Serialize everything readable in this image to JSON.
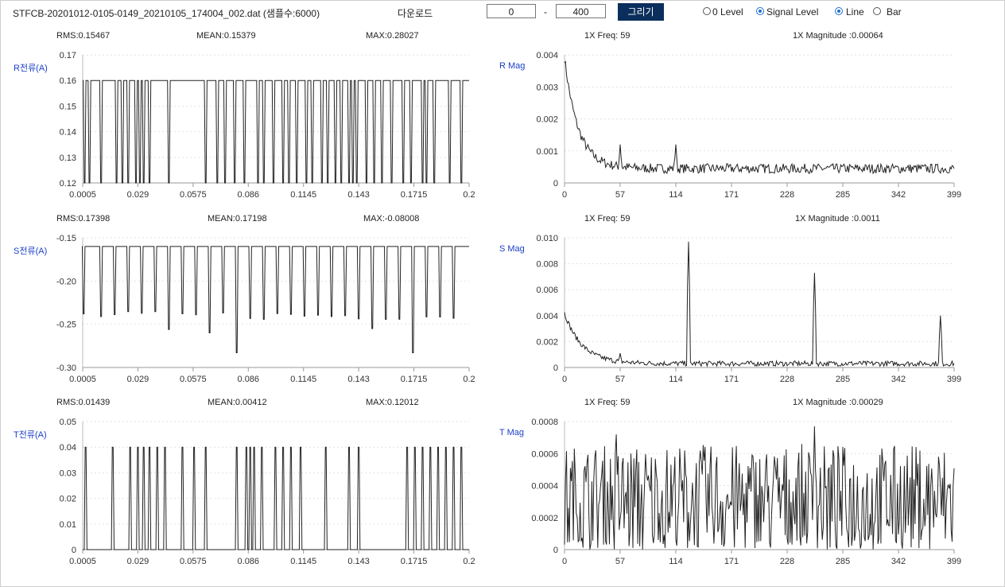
{
  "toolbar": {
    "filename": "STFCB-20201012-0105-0149_20210105_174004_002.dat (샘플수:6000)",
    "download_label": "다운로드",
    "range_from": "0",
    "range_sep": "-",
    "range_to": "400",
    "draw_button": "그리기",
    "level_options": [
      {
        "label": "0 Level",
        "selected": false
      },
      {
        "label": "Signal Level",
        "selected": true
      }
    ],
    "style_options": [
      {
        "label": "Line",
        "selected": true
      },
      {
        "label": "Bar",
        "selected": false
      }
    ]
  },
  "colors": {
    "label_blue": "#1a3fc8",
    "button_bg": "#0b2f5c",
    "radio_on": "#1f6fd1",
    "trace": "#222222",
    "grid": "#e2e2e2"
  },
  "chart_data": [
    {
      "id": "r-current",
      "type": "line",
      "ylabel": "R전류(A)",
      "stats": [
        "RMS:0.15467",
        "MEAN:0.15379",
        "MAX:0.28027"
      ],
      "x_ticks": [
        "0.0005",
        "0.029",
        "0.0575",
        "0.086",
        "0.1145",
        "0.143",
        "0.1715",
        "0.2"
      ],
      "y_ticks": [
        "0.17",
        "0.16",
        "0.15",
        "0.14",
        "0.13",
        "0.12"
      ],
      "xlim": [
        0.0005,
        0.2
      ],
      "ylim": [
        0.12,
        0.17
      ],
      "signal": "square",
      "high": 0.16,
      "low": 0.12,
      "dip_depth": 0,
      "drops": [
        0.0015,
        0.004,
        0.01,
        0.018,
        0.021,
        0.024,
        0.028,
        0.03,
        0.032,
        0.035,
        0.045,
        0.064,
        0.07,
        0.074,
        0.079,
        0.084,
        0.091,
        0.094,
        0.099,
        0.104,
        0.107,
        0.111,
        0.116,
        0.119,
        0.124,
        0.127,
        0.131,
        0.134,
        0.138,
        0.14,
        0.142,
        0.147,
        0.151,
        0.155,
        0.16,
        0.166,
        0.17,
        0.176,
        0.178,
        0.182,
        0.19,
        0.196
      ]
    },
    {
      "id": "r-mag",
      "type": "line",
      "ylabel": "R Mag",
      "stats": [
        "1X Freq: 59",
        "1X Magnitude :0.00064"
      ],
      "x_ticks": [
        "0",
        "57",
        "114",
        "171",
        "228",
        "285",
        "342",
        "399"
      ],
      "y_ticks": [
        "0.004",
        "0.003",
        "0.002",
        "0.001",
        "0"
      ],
      "xlim": [
        0,
        399
      ],
      "ylim": [
        0,
        0.004
      ],
      "signal": "spectrum",
      "decay": {
        "start": 0.0039,
        "tau": 14,
        "floor": 0.00045
      },
      "noise": 0.0003,
      "peaks": [
        [
          57,
          0.0012
        ],
        [
          114,
          0.0012
        ]
      ]
    },
    {
      "id": "s-current",
      "type": "line",
      "ylabel": "S전류(A)",
      "stats": [
        "RMS:0.17398",
        "MEAN:0.17198",
        "MAX:-0.08008"
      ],
      "x_ticks": [
        "0.0005",
        "0.029",
        "0.0575",
        "0.086",
        "0.1145",
        "0.143",
        "0.1715",
        "0.2"
      ],
      "y_ticks": [
        "-0.15",
        "-0.20",
        "-0.25",
        "-0.30"
      ],
      "xlim": [
        0.0005,
        0.2
      ],
      "ylim": [
        -0.3,
        -0.15
      ],
      "signal": "dips",
      "high": -0.16,
      "low": -0.24,
      "dip_depth": 0,
      "drops": [
        0.001,
        0.01,
        0.017,
        0.024,
        0.031,
        0.038,
        0.045,
        0.052,
        0.059,
        0.066,
        0.073,
        0.08,
        0.087,
        0.094,
        0.101,
        0.108,
        0.115,
        0.122,
        0.129,
        0.136,
        0.143,
        0.15,
        0.157,
        0.164,
        0.171,
        0.178,
        0.185,
        0.192
      ],
      "deep": [
        [
          0.078,
          -0.283
        ],
        [
          0.046,
          -0.256
        ],
        [
          0.15,
          -0.255
        ],
        [
          0.172,
          -0.283
        ],
        [
          0.067,
          -0.26
        ]
      ]
    },
    {
      "id": "s-mag",
      "type": "line",
      "ylabel": "S Mag",
      "stats": [
        "1X Freq: 59",
        "1X Magnitude :0.0011"
      ],
      "x_ticks": [
        "0",
        "57",
        "114",
        "171",
        "228",
        "285",
        "342",
        "399"
      ],
      "y_ticks": [
        "0.010",
        "0.008",
        "0.006",
        "0.004",
        "0.002",
        "0"
      ],
      "xlim": [
        0,
        399
      ],
      "ylim": [
        0,
        0.01
      ],
      "signal": "spectrum",
      "decay": {
        "start": 0.0042,
        "tau": 18,
        "floor": 0.0003
      },
      "noise": 0.0004,
      "peaks": [
        [
          127,
          0.0097
        ],
        [
          256,
          0.0073
        ],
        [
          385,
          0.004
        ],
        [
          57,
          0.0011
        ]
      ]
    },
    {
      "id": "t-current",
      "type": "line",
      "ylabel": "T전류(A)",
      "stats": [
        "RMS:0.01439",
        "MEAN:0.00412",
        "MAX:0.12012"
      ],
      "x_ticks": [
        "0.0005",
        "0.029",
        "0.0575",
        "0.086",
        "0.1145",
        "0.143",
        "0.1715",
        "0.2"
      ],
      "y_ticks": [
        "0.05",
        "0.04",
        "0.03",
        "0.02",
        "0.01",
        "0"
      ],
      "xlim": [
        0.0005,
        0.2
      ],
      "ylim": [
        0,
        0.05
      ],
      "signal": "pulses",
      "high": 0.04,
      "low": 0,
      "drops": [
        0.002,
        0.016,
        0.025,
        0.029,
        0.032,
        0.035,
        0.039,
        0.043,
        0.052,
        0.058,
        0.064,
        0.08,
        0.085,
        0.087,
        0.089,
        0.093,
        0.1,
        0.104,
        0.108,
        0.113,
        0.126,
        0.138,
        0.143,
        0.168,
        0.172,
        0.176,
        0.18,
        0.184,
        0.188,
        0.192,
        0.196
      ]
    },
    {
      "id": "t-mag",
      "type": "line",
      "ylabel": "T Mag",
      "stats": [
        "1X Freq: 59",
        "1X Magnitude :0.00029"
      ],
      "x_ticks": [
        "0",
        "57",
        "114",
        "171",
        "228",
        "285",
        "342",
        "399"
      ],
      "y_ticks": [
        "0.0008",
        "0.0006",
        "0.0004",
        "0.0002",
        "0"
      ],
      "xlim": [
        0,
        399
      ],
      "ylim": [
        0,
        0.0008
      ],
      "signal": "noise",
      "decay": {
        "start": 0.0003,
        "tau": 1000,
        "floor": 0.0003
      },
      "noise": 0.00045,
      "peaks": [
        [
          256,
          0.00077
        ],
        [
          53,
          0.00072
        ]
      ]
    }
  ]
}
